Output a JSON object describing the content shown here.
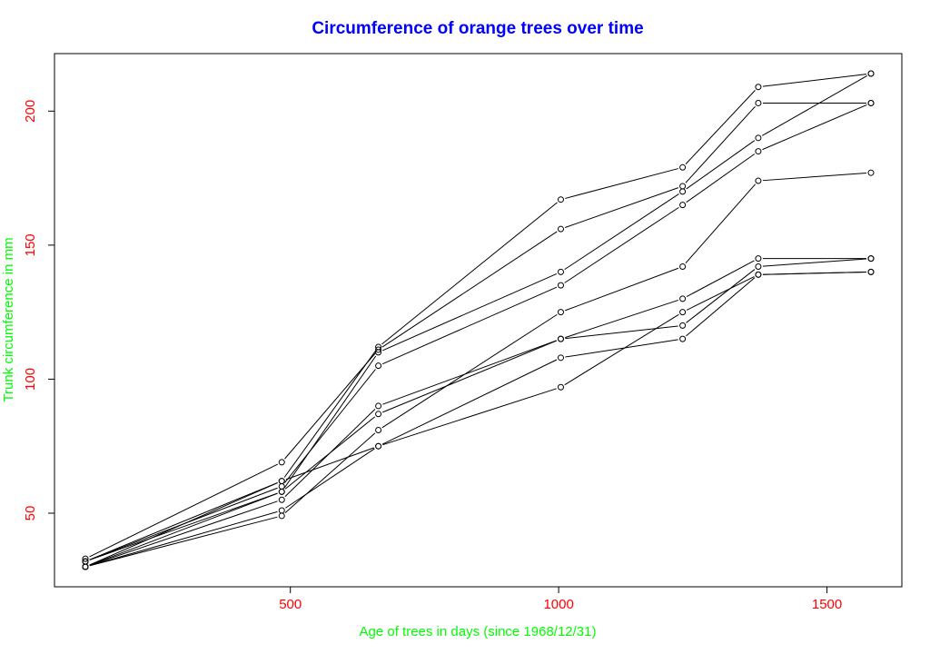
{
  "chart_data": {
    "type": "line",
    "title": "Circumference of orange trees over time",
    "xlabel": "Age of trees in days (since 1968/12/31)",
    "ylabel": "Trunk circumference in mm",
    "xlim": [
      118,
      1582
    ],
    "ylim": [
      30,
      214
    ],
    "x_ticks": [
      "500",
      "1000",
      "1500"
    ],
    "y_ticks": [
      "50",
      "100",
      "150",
      "200"
    ],
    "grid": false,
    "colors": {
      "title": "#0000ff",
      "axis_label": "#00ff00",
      "tick_label": "#ff0000",
      "line": "#000000"
    },
    "x": [
      118,
      484,
      664,
      1004,
      1231,
      1372,
      1582
    ],
    "series": [
      {
        "values": [
          30,
          58,
          87,
          115,
          120,
          142,
          145
        ]
      },
      {
        "values": [
          33,
          69,
          111,
          156,
          172,
          203,
          203
        ]
      },
      {
        "values": [
          30,
          51,
          75,
          108,
          115,
          139,
          140
        ]
      },
      {
        "values": [
          32,
          62,
          112,
          167,
          179,
          209,
          214
        ]
      },
      {
        "values": [
          30,
          49,
          81,
          125,
          142,
          174,
          177
        ]
      },
      {
        "values": [
          30,
          62,
          75,
          97,
          125,
          139,
          140
        ]
      },
      {
        "values": [
          32,
          58,
          110,
          140,
          170,
          190,
          214
        ]
      },
      {
        "values": [
          32,
          60,
          105,
          135,
          165,
          185,
          203
        ]
      },
      {
        "values": [
          30,
          55,
          90,
          115,
          130,
          145,
          145
        ]
      }
    ]
  }
}
